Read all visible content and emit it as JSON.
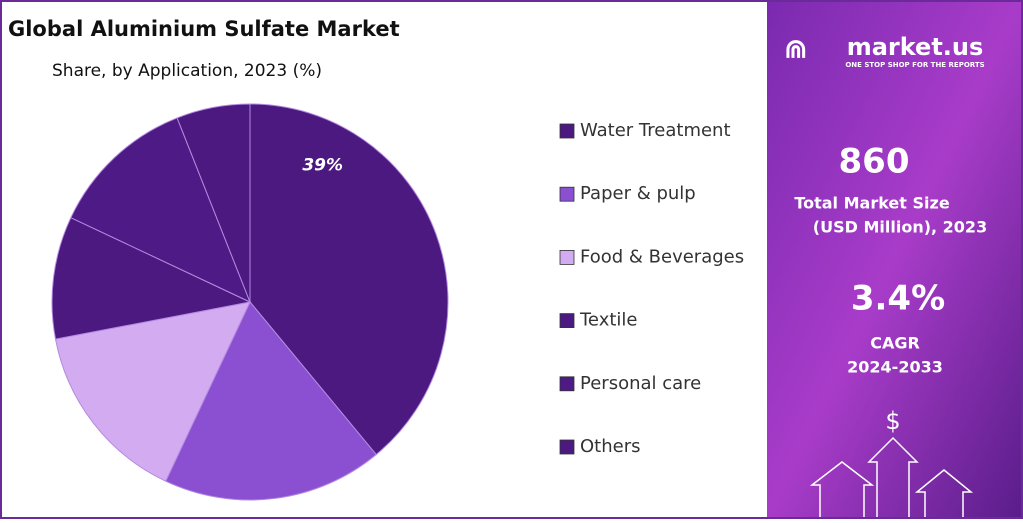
{
  "chart_data": {
    "type": "pie",
    "title": "Global Aluminium Sulfate Market",
    "subtitle": "Share, by Application, 2023 (%)",
    "categories": [
      "Water Treatment",
      "Paper & pulp",
      "Food & Beverages",
      "Textile",
      "Personal care",
      "Others"
    ],
    "values": [
      39,
      18,
      15,
      10,
      12,
      6
    ],
    "value_labels": [
      "39%",
      null,
      null,
      null,
      null,
      null
    ],
    "colors": [
      "#4b197f",
      "#8a50d1",
      "#d3abf0",
      "#4b197f",
      "#4e1a86",
      "#4b197f"
    ],
    "legend": "right"
  },
  "panel": {
    "logo": "market.us",
    "tagline": "ONE STOP SHOP FOR THE REPORTS",
    "market_size": "860",
    "market_size_label": [
      "Total Market Size",
      "(USD Million), 2023"
    ],
    "cagr": "3.4%",
    "cagr_label": [
      "CAGR",
      "2024-2033"
    ],
    "icon": "$"
  }
}
